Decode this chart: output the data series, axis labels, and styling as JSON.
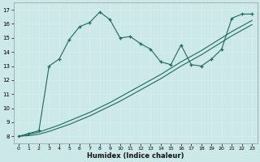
{
  "xlabel": "Humidex (Indice chaleur)",
  "bg_color": "#cce8e8",
  "grid_color": "#b0d0d0",
  "line_color": "#1a6b5a",
  "xlim": [
    -0.5,
    23.5
  ],
  "ylim": [
    7.5,
    17.5
  ],
  "yticks": [
    8,
    9,
    10,
    11,
    12,
    13,
    14,
    15,
    16,
    17
  ],
  "xticks": [
    0,
    1,
    2,
    3,
    4,
    5,
    6,
    7,
    8,
    9,
    10,
    11,
    12,
    13,
    14,
    15,
    16,
    17,
    18,
    19,
    20,
    21,
    22,
    23
  ],
  "series1_x": [
    0,
    1,
    2,
    3,
    4,
    5,
    6,
    7,
    8,
    9,
    10,
    11,
    12,
    13,
    14,
    15,
    16,
    17,
    18,
    19,
    20,
    21,
    22,
    23
  ],
  "series1_y": [
    8.0,
    8.15,
    8.3,
    8.55,
    8.8,
    9.1,
    9.4,
    9.7,
    10.05,
    10.4,
    10.8,
    11.2,
    11.6,
    12.0,
    12.4,
    12.85,
    13.3,
    13.7,
    14.1,
    14.55,
    15.0,
    15.45,
    15.85,
    16.25
  ],
  "series2_x": [
    0,
    1,
    2,
    3,
    4,
    5,
    6,
    7,
    8,
    9,
    10,
    11,
    12,
    13,
    14,
    15,
    16,
    17,
    18,
    19,
    20,
    21,
    22,
    23
  ],
  "series2_y": [
    8.0,
    8.05,
    8.15,
    8.35,
    8.6,
    8.85,
    9.15,
    9.45,
    9.8,
    10.15,
    10.5,
    10.9,
    11.3,
    11.7,
    12.1,
    12.55,
    13.0,
    13.4,
    13.8,
    14.25,
    14.7,
    15.15,
    15.55,
    15.95
  ],
  "series3_x": [
    0,
    1,
    2,
    3,
    4,
    5,
    6,
    7,
    8,
    9,
    10,
    11,
    12,
    13,
    14,
    15,
    16,
    17,
    18,
    19,
    20,
    21,
    22,
    23
  ],
  "series3_y": [
    8.0,
    8.2,
    8.4,
    13.0,
    13.5,
    14.9,
    15.8,
    16.1,
    16.85,
    16.3,
    15.0,
    15.1,
    14.6,
    14.2,
    13.3,
    13.1,
    14.5,
    13.1,
    13.0,
    13.5,
    14.2,
    16.4,
    16.7,
    16.7
  ]
}
